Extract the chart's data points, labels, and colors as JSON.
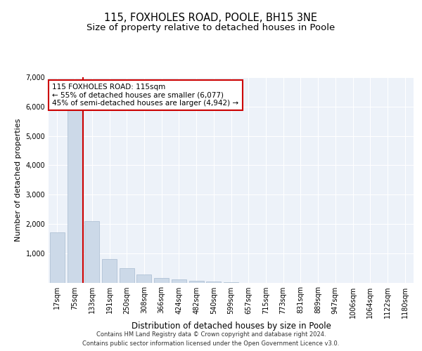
{
  "title1": "115, FOXHOLES ROAD, POOLE, BH15 3NE",
  "title2": "Size of property relative to detached houses in Poole",
  "xlabel": "Distribution of detached houses by size in Poole",
  "ylabel": "Number of detached properties",
  "annotation_line1": "115 FOXHOLES ROAD: 115sqm",
  "annotation_line2": "← 55% of detached houses are smaller (6,077)",
  "annotation_line3": "45% of semi-detached houses are larger (4,942) →",
  "footer1": "Contains HM Land Registry data © Crown copyright and database right 2024.",
  "footer2": "Contains public sector information licensed under the Open Government Licence v3.0.",
  "bar_color": "#ccd9e8",
  "bar_edge_color": "#9ab0c8",
  "vline_color": "#cc0000",
  "vline_x_index": 1.5,
  "annotation_box_color": "#cc0000",
  "categories": [
    "17sqm",
    "75sqm",
    "133sqm",
    "191sqm",
    "250sqm",
    "308sqm",
    "366sqm",
    "424sqm",
    "482sqm",
    "540sqm",
    "599sqm",
    "657sqm",
    "715sqm",
    "773sqm",
    "831sqm",
    "889sqm",
    "947sqm",
    "1006sqm",
    "1064sqm",
    "1122sqm",
    "1180sqm"
  ],
  "values": [
    1700,
    5900,
    2100,
    800,
    500,
    270,
    150,
    100,
    60,
    40,
    20,
    0,
    0,
    0,
    0,
    0,
    0,
    0,
    0,
    0,
    0
  ],
  "ylim": [
    0,
    7000
  ],
  "yticks": [
    0,
    1000,
    2000,
    3000,
    4000,
    5000,
    6000,
    7000
  ],
  "background_color": "#edf2f9",
  "grid_color": "#ffffff",
  "title1_fontsize": 10.5,
  "title2_fontsize": 9.5,
  "tick_fontsize": 7,
  "ylabel_fontsize": 8,
  "xlabel_fontsize": 8.5,
  "annotation_fontsize": 7.5,
  "footer_fontsize": 6
}
